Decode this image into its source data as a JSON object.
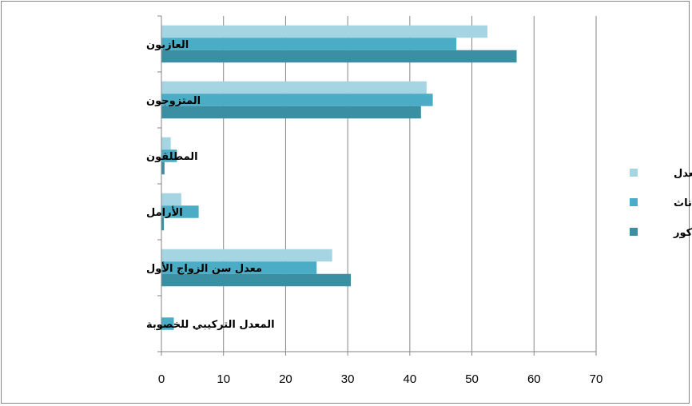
{
  "chart_data": {
    "type": "bar",
    "orientation": "horizontal",
    "title": "",
    "xlabel": "",
    "ylabel": "",
    "xlim": [
      0,
      70
    ],
    "x_ticks": [
      0,
      10,
      20,
      30,
      40,
      50,
      60,
      70
    ],
    "grid": true,
    "legend_position": "right",
    "categories": [
      "العازبون",
      "المتزوجون",
      "المطلقون",
      "الأرامل",
      "معدل سن الزواج الأول",
      "المعدل التركيبي للخصوبة"
    ],
    "series": [
      {
        "name": "المعدل",
        "color": "#A5D5E2",
        "values": [
          52.5,
          42.7,
          1.5,
          3.2,
          27.5,
          0
        ]
      },
      {
        "name": "الإناث",
        "color": "#4BACC6",
        "values": [
          47.5,
          43.7,
          2.5,
          6.0,
          25.0,
          2.0
        ]
      },
      {
        "name": "الذكور",
        "color": "#3B8FA3",
        "values": [
          57.2,
          41.8,
          0.5,
          0.4,
          30.5,
          0
        ]
      }
    ]
  }
}
